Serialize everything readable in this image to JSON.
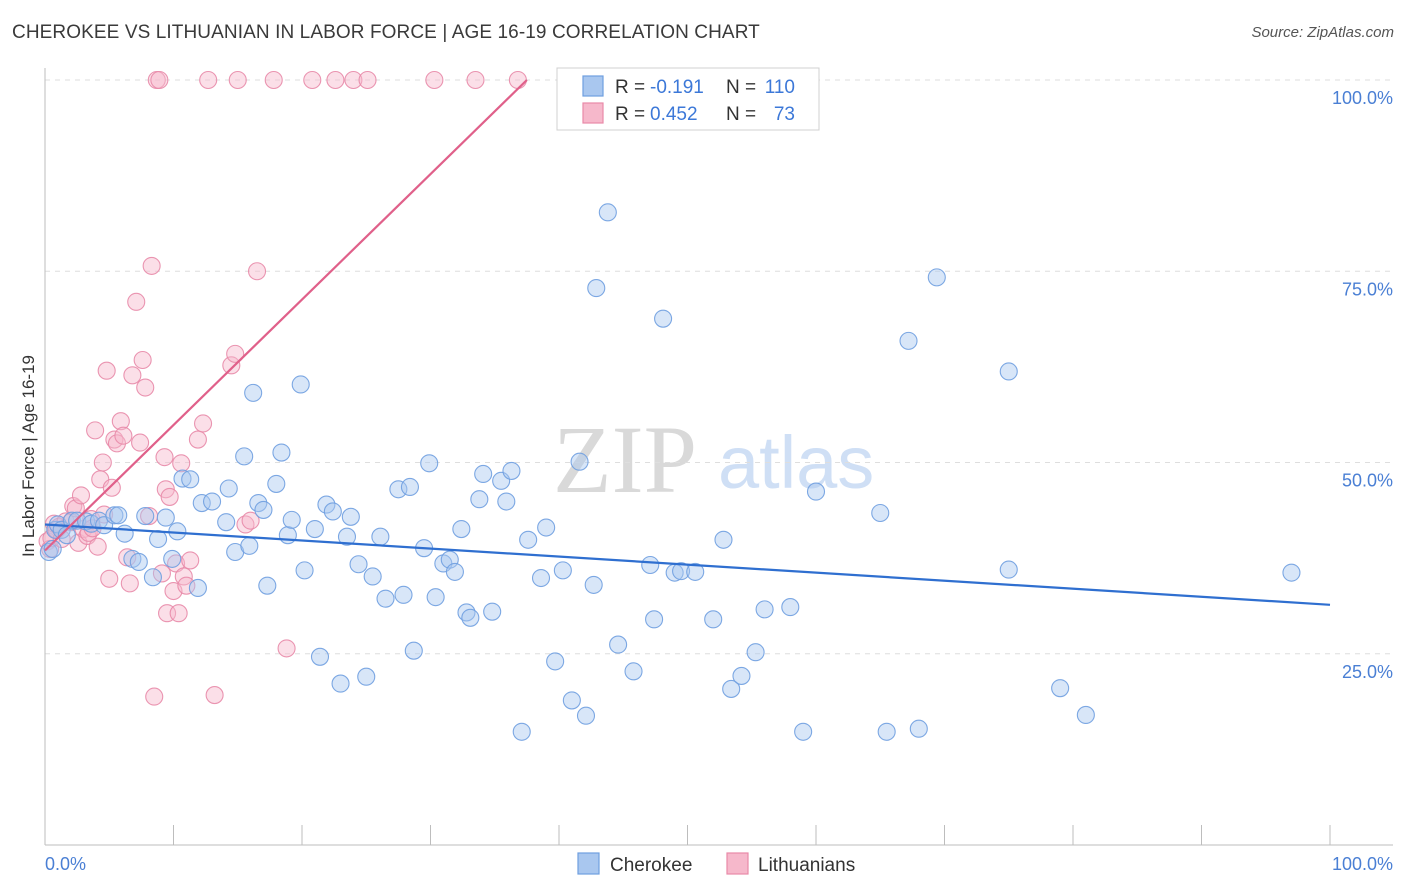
{
  "header": {
    "title": "CHEROKEE VS LITHUANIAN IN LABOR FORCE | AGE 16-19 CORRELATION CHART",
    "source": "Source: ZipAtlas.com"
  },
  "watermark": {
    "zip": "ZIP",
    "atlas": "atlas"
  },
  "legend_box": {
    "rows": [
      {
        "r_label": "R =",
        "r_value": "-0.191",
        "n_label": "N =",
        "n_value": "110"
      },
      {
        "r_label": "R =",
        "r_value": "0.452",
        "n_label": "N =",
        "n_value": "73"
      }
    ]
  },
  "bottom_legend": {
    "cherokee": "Cherokee",
    "lithuanians": "Lithuanians"
  },
  "colors": {
    "cherokee_fill": "#a9c7ef",
    "cherokee_stroke": "#6f9fe0",
    "cherokee_line": "#2f6fd0",
    "lithuanian_fill": "#f6b8cb",
    "lithuanian_stroke": "#e88aa8",
    "lithuanian_line": "#e0608a",
    "tick_text": "#4a7fd4",
    "grid": "#dedede"
  },
  "chart_data": {
    "type": "scatter",
    "title": "CHEROKEE VS LITHUANIAN IN LABOR FORCE | AGE 16-19 CORRELATION CHART",
    "xlabel": "",
    "ylabel": "In Labor Force | Age 16-19",
    "xlim": [
      0,
      100
    ],
    "ylim": [
      0,
      100
    ],
    "x_tick_labels": [
      "0.0%",
      "100.0%"
    ],
    "y_ticks": [
      25,
      50,
      75,
      100
    ],
    "y_tick_labels": [
      "25.0%",
      "50.0%",
      "75.0%",
      "100.0%"
    ],
    "grid": true,
    "legend_position": "top-center",
    "series": [
      {
        "name": "Cherokee",
        "r": -0.191,
        "n": 110,
        "trend": {
          "x": [
            0,
            100
          ],
          "y": [
            41.9,
            31.4
          ]
        },
        "points": [
          [
            0.3,
            38.3
          ],
          [
            0.6,
            38.7
          ],
          [
            0.8,
            41.2
          ],
          [
            1.0,
            41.9
          ],
          [
            1.3,
            41.2
          ],
          [
            1.7,
            40.5
          ],
          [
            2.1,
            42.4
          ],
          [
            2.5,
            42.4
          ],
          [
            3.2,
            42.3
          ],
          [
            3.6,
            42.0
          ],
          [
            4.2,
            42.4
          ],
          [
            4.6,
            41.8
          ],
          [
            5.4,
            43.1
          ],
          [
            5.7,
            43.1
          ],
          [
            6.2,
            40.7
          ],
          [
            6.8,
            37.4
          ],
          [
            7.3,
            37.0
          ],
          [
            7.8,
            43.0
          ],
          [
            8.4,
            35.0
          ],
          [
            8.8,
            40.0
          ],
          [
            9.4,
            42.8
          ],
          [
            9.9,
            37.4
          ],
          [
            10.3,
            41.0
          ],
          [
            10.7,
            47.9
          ],
          [
            11.3,
            47.8
          ],
          [
            11.9,
            33.6
          ],
          [
            12.2,
            44.7
          ],
          [
            13.0,
            44.9
          ],
          [
            14.1,
            42.2
          ],
          [
            14.3,
            46.6
          ],
          [
            14.8,
            38.3
          ],
          [
            15.5,
            50.8
          ],
          [
            15.9,
            39.1
          ],
          [
            16.2,
            59.1
          ],
          [
            16.6,
            44.7
          ],
          [
            17.0,
            43.8
          ],
          [
            17.3,
            33.9
          ],
          [
            18.0,
            47.2
          ],
          [
            18.4,
            51.3
          ],
          [
            18.9,
            40.5
          ],
          [
            19.2,
            42.5
          ],
          [
            19.9,
            60.2
          ],
          [
            20.2,
            35.9
          ],
          [
            21.0,
            41.3
          ],
          [
            21.4,
            24.6
          ],
          [
            21.9,
            44.5
          ],
          [
            22.4,
            43.6
          ],
          [
            23.0,
            21.1
          ],
          [
            23.5,
            40.3
          ],
          [
            23.8,
            42.9
          ],
          [
            24.4,
            36.7
          ],
          [
            25.0,
            22.0
          ],
          [
            25.5,
            35.1
          ],
          [
            26.1,
            40.3
          ],
          [
            26.5,
            32.2
          ],
          [
            27.5,
            46.5
          ],
          [
            27.9,
            32.7
          ],
          [
            28.4,
            46.8
          ],
          [
            28.7,
            25.4
          ],
          [
            29.5,
            38.8
          ],
          [
            29.9,
            49.9
          ],
          [
            30.4,
            32.4
          ],
          [
            31.0,
            36.8
          ],
          [
            31.5,
            37.3
          ],
          [
            31.9,
            35.7
          ],
          [
            32.4,
            41.3
          ],
          [
            32.8,
            30.4
          ],
          [
            33.1,
            29.7
          ],
          [
            33.8,
            45.2
          ],
          [
            34.1,
            48.5
          ],
          [
            34.8,
            30.5
          ],
          [
            35.5,
            47.6
          ],
          [
            35.9,
            44.9
          ],
          [
            36.3,
            48.9
          ],
          [
            37.1,
            14.8
          ],
          [
            37.6,
            39.9
          ],
          [
            38.6,
            34.9
          ],
          [
            39.0,
            41.5
          ],
          [
            39.7,
            24.0
          ],
          [
            40.3,
            35.9
          ],
          [
            41.0,
            18.9
          ],
          [
            41.6,
            50.1
          ],
          [
            42.1,
            16.9
          ],
          [
            42.7,
            34.0
          ],
          [
            42.9,
            72.8
          ],
          [
            43.8,
            82.7
          ],
          [
            44.6,
            26.2
          ],
          [
            45.8,
            22.7
          ],
          [
            47.1,
            36.6
          ],
          [
            47.4,
            29.5
          ],
          [
            48.1,
            68.8
          ],
          [
            49.0,
            35.6
          ],
          [
            49.5,
            35.8
          ],
          [
            50.6,
            35.7
          ],
          [
            52.0,
            29.5
          ],
          [
            52.8,
            39.9
          ],
          [
            53.4,
            20.4
          ],
          [
            54.2,
            22.1
          ],
          [
            55.3,
            25.2
          ],
          [
            56.0,
            30.8
          ],
          [
            58.0,
            31.1
          ],
          [
            59.0,
            14.8
          ],
          [
            60.0,
            46.2
          ],
          [
            65.0,
            43.4
          ],
          [
            65.5,
            14.8
          ],
          [
            67.2,
            65.9
          ],
          [
            68.0,
            15.2
          ],
          [
            69.4,
            74.2
          ],
          [
            75.0,
            61.9
          ],
          [
            75.0,
            36.0
          ],
          [
            79.0,
            20.5
          ],
          [
            81.0,
            17.0
          ],
          [
            97.0,
            35.6
          ]
        ]
      },
      {
        "name": "Lithuanians",
        "r": 0.452,
        "n": 73,
        "trend": {
          "x": [
            0,
            37.5
          ],
          "y": [
            38.5,
            100
          ]
        },
        "points": [
          [
            0.2,
            39.7
          ],
          [
            0.4,
            38.7
          ],
          [
            0.5,
            40.1
          ],
          [
            0.7,
            42.0
          ],
          [
            0.9,
            41.2
          ],
          [
            1.1,
            41.6
          ],
          [
            1.3,
            40.0
          ],
          [
            1.6,
            42.3
          ],
          [
            2.0,
            42.2
          ],
          [
            2.2,
            44.3
          ],
          [
            2.4,
            44.0
          ],
          [
            2.6,
            39.5
          ],
          [
            2.8,
            45.7
          ],
          [
            3.0,
            41.3
          ],
          [
            3.3,
            40.4
          ],
          [
            3.4,
            40.8
          ],
          [
            3.6,
            42.6
          ],
          [
            3.7,
            41.4
          ],
          [
            3.9,
            54.2
          ],
          [
            4.1,
            39.0
          ],
          [
            4.3,
            47.8
          ],
          [
            4.5,
            50.0
          ],
          [
            4.6,
            43.2
          ],
          [
            4.8,
            62.0
          ],
          [
            5.0,
            34.8
          ],
          [
            5.2,
            46.7
          ],
          [
            5.4,
            53.0
          ],
          [
            5.6,
            52.5
          ],
          [
            5.9,
            55.4
          ],
          [
            6.1,
            53.5
          ],
          [
            6.4,
            37.6
          ],
          [
            6.6,
            34.2
          ],
          [
            6.8,
            61.4
          ],
          [
            7.1,
            71.0
          ],
          [
            7.4,
            52.6
          ],
          [
            7.6,
            63.4
          ],
          [
            7.8,
            59.8
          ],
          [
            8.1,
            43.0
          ],
          [
            8.3,
            75.7
          ],
          [
            8.5,
            19.4
          ],
          [
            8.7,
            100.0
          ],
          [
            8.9,
            100.0
          ],
          [
            9.1,
            35.5
          ],
          [
            9.3,
            50.7
          ],
          [
            9.4,
            46.5
          ],
          [
            9.5,
            30.3
          ],
          [
            9.7,
            45.5
          ],
          [
            10.0,
            33.2
          ],
          [
            10.2,
            36.8
          ],
          [
            10.4,
            30.3
          ],
          [
            10.6,
            49.9
          ],
          [
            10.8,
            35.1
          ],
          [
            11.0,
            33.9
          ],
          [
            11.3,
            37.2
          ],
          [
            11.9,
            53.0
          ],
          [
            12.3,
            55.1
          ],
          [
            12.7,
            100.0
          ],
          [
            13.2,
            19.6
          ],
          [
            14.5,
            62.7
          ],
          [
            14.8,
            64.2
          ],
          [
            15.0,
            100.0
          ],
          [
            15.6,
            41.9
          ],
          [
            16.0,
            42.4
          ],
          [
            16.5,
            75.0
          ],
          [
            17.8,
            100.0
          ],
          [
            18.8,
            25.7
          ],
          [
            20.8,
            100.0
          ],
          [
            22.6,
            100.0
          ],
          [
            24.0,
            100.0
          ],
          [
            25.1,
            100.0
          ],
          [
            30.3,
            100.0
          ],
          [
            33.5,
            100.0
          ],
          [
            36.8,
            100.0
          ]
        ]
      }
    ]
  }
}
